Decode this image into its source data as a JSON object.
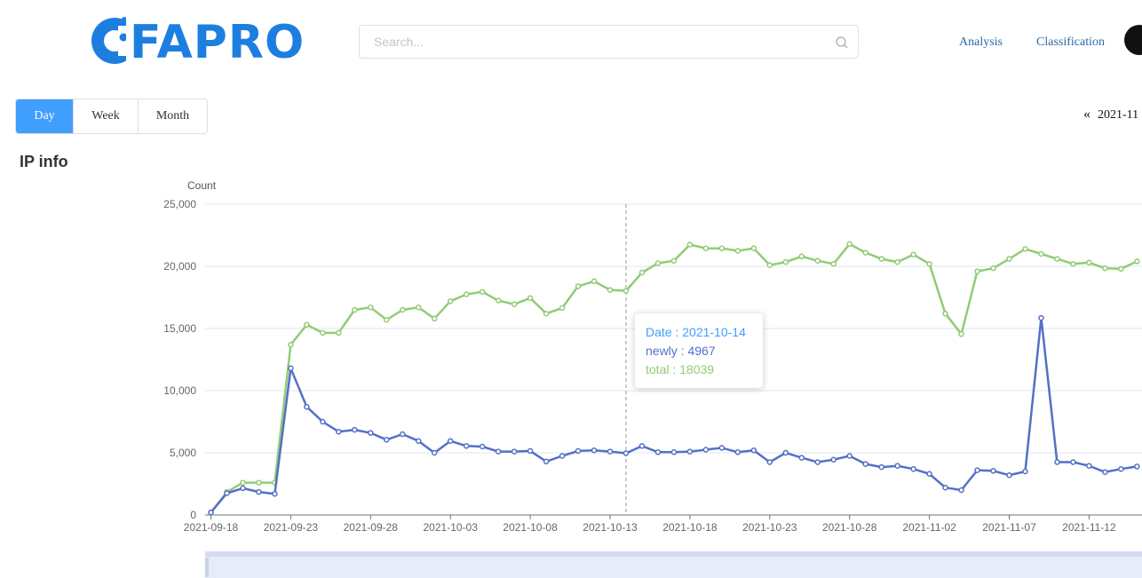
{
  "header": {
    "logo_text": "FAPRO",
    "search_placeholder": "Search...",
    "nav": [
      "Analysis",
      "Classification"
    ]
  },
  "tabs": [
    {
      "label": "Day",
      "active": true
    },
    {
      "label": "Week",
      "active": false
    },
    {
      "label": "Month",
      "active": false
    }
  ],
  "date_nav": {
    "label": "2021-11"
  },
  "section_title": "IP info",
  "colors": {
    "newly": "#5470c6",
    "total": "#91cc75",
    "accent": "#409eff",
    "brand": "#1c7fe0"
  },
  "tooltip": {
    "date_label": "Date : 2021-10-14",
    "newly_label": "newly : 4967",
    "total_label": "total : 18039"
  },
  "chart_data": {
    "type": "line",
    "ylabel": "Count",
    "ylim": [
      0,
      25000
    ],
    "yticks": [
      "0",
      "5,000",
      "10,000",
      "15,000",
      "20,000",
      "25,000"
    ],
    "grid": true,
    "x_start": "2021-09-18",
    "x_tick_labels": [
      "2021-09-18",
      "2021-09-23",
      "2021-09-28",
      "2021-10-03",
      "2021-10-08",
      "2021-10-13",
      "2021-10-18",
      "2021-10-23",
      "2021-10-28",
      "2021-11-02",
      "2021-11-07",
      "2021-11-12"
    ],
    "series": [
      {
        "name": "newly",
        "values": [
          200,
          1750,
          2150,
          1850,
          1700,
          11800,
          8700,
          7500,
          6700,
          6850,
          6600,
          6050,
          6500,
          5950,
          5000,
          5950,
          5550,
          5500,
          5100,
          5100,
          5150,
          4300,
          4750,
          5150,
          5200,
          5100,
          4967,
          5550,
          5050,
          5050,
          5100,
          5250,
          5400,
          5050,
          5200,
          4250,
          5000,
          4600,
          4250,
          4450,
          4750,
          4100,
          3850,
          3950,
          3700,
          3300,
          2200,
          2000,
          3600,
          3550,
          3200,
          3500,
          15850,
          4250,
          4250,
          3950,
          3450,
          3700,
          3900
        ]
      },
      {
        "name": "total",
        "values": [
          200,
          1850,
          2600,
          2600,
          2600,
          13700,
          15300,
          14650,
          14650,
          16500,
          16700,
          15700,
          16500,
          16700,
          15800,
          17200,
          17750,
          17950,
          17250,
          16950,
          17450,
          16200,
          16650,
          18400,
          18800,
          18100,
          18039,
          19500,
          20250,
          20450,
          21750,
          21450,
          21450,
          21250,
          21450,
          20100,
          20350,
          20800,
          20450,
          20200,
          21800,
          21100,
          20600,
          20350,
          20950,
          20200,
          16200,
          14550,
          19600,
          19850,
          20600,
          21400,
          21000,
          20600,
          20200,
          20300,
          19850,
          19800,
          20400
        ]
      }
    ]
  }
}
